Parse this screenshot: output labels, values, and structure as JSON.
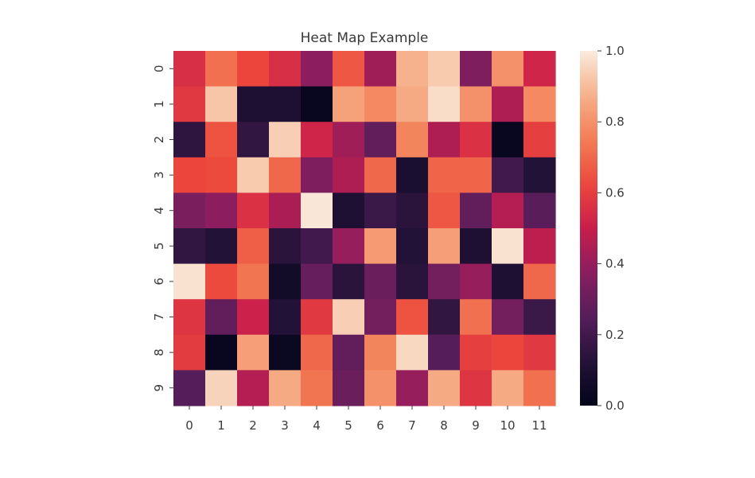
{
  "chart_data": {
    "type": "heatmap",
    "title": "Heat Map Example",
    "xlabel": "",
    "ylabel": "",
    "x_categories": [
      "0",
      "1",
      "2",
      "3",
      "4",
      "5",
      "6",
      "7",
      "8",
      "9",
      "10",
      "11"
    ],
    "y_categories": [
      "0",
      "1",
      "2",
      "3",
      "4",
      "5",
      "6",
      "7",
      "8",
      "9"
    ],
    "values": [
      [
        0.55,
        0.72,
        0.62,
        0.55,
        0.38,
        0.66,
        0.42,
        0.88,
        0.93,
        0.35,
        0.8,
        0.52
      ],
      [
        0.58,
        0.92,
        0.1,
        0.1,
        0.02,
        0.84,
        0.78,
        0.86,
        0.97,
        0.8,
        0.45,
        0.78
      ],
      [
        0.15,
        0.65,
        0.16,
        0.94,
        0.52,
        0.42,
        0.28,
        0.77,
        0.45,
        0.56,
        0.02,
        0.6
      ],
      [
        0.62,
        0.63,
        0.93,
        0.7,
        0.35,
        0.45,
        0.7,
        0.09,
        0.69,
        0.69,
        0.2,
        0.12
      ],
      [
        0.34,
        0.38,
        0.56,
        0.44,
        0.99,
        0.1,
        0.18,
        0.14,
        0.66,
        0.28,
        0.46,
        0.26
      ],
      [
        0.16,
        0.12,
        0.68,
        0.14,
        0.2,
        0.4,
        0.82,
        0.12,
        0.83,
        0.1,
        0.98,
        0.48
      ],
      [
        0.98,
        0.63,
        0.73,
        0.06,
        0.29,
        0.14,
        0.3,
        0.14,
        0.32,
        0.4,
        0.1,
        0.7
      ],
      [
        0.57,
        0.28,
        0.51,
        0.12,
        0.58,
        0.94,
        0.32,
        0.65,
        0.16,
        0.72,
        0.32,
        0.18
      ],
      [
        0.59,
        0.02,
        0.83,
        0.03,
        0.7,
        0.28,
        0.77,
        0.96,
        0.25,
        0.6,
        0.62,
        0.58
      ],
      [
        0.25,
        0.95,
        0.46,
        0.86,
        0.73,
        0.3,
        0.8,
        0.4,
        0.86,
        0.57,
        0.86,
        0.72
      ]
    ],
    "colorbar": {
      "min": 0.0,
      "max": 1.0,
      "ticks": [
        "0.0",
        "0.2",
        "0.4",
        "0.6",
        "0.8",
        "1.0"
      ]
    },
    "colormap": "rocket",
    "grid": false
  }
}
